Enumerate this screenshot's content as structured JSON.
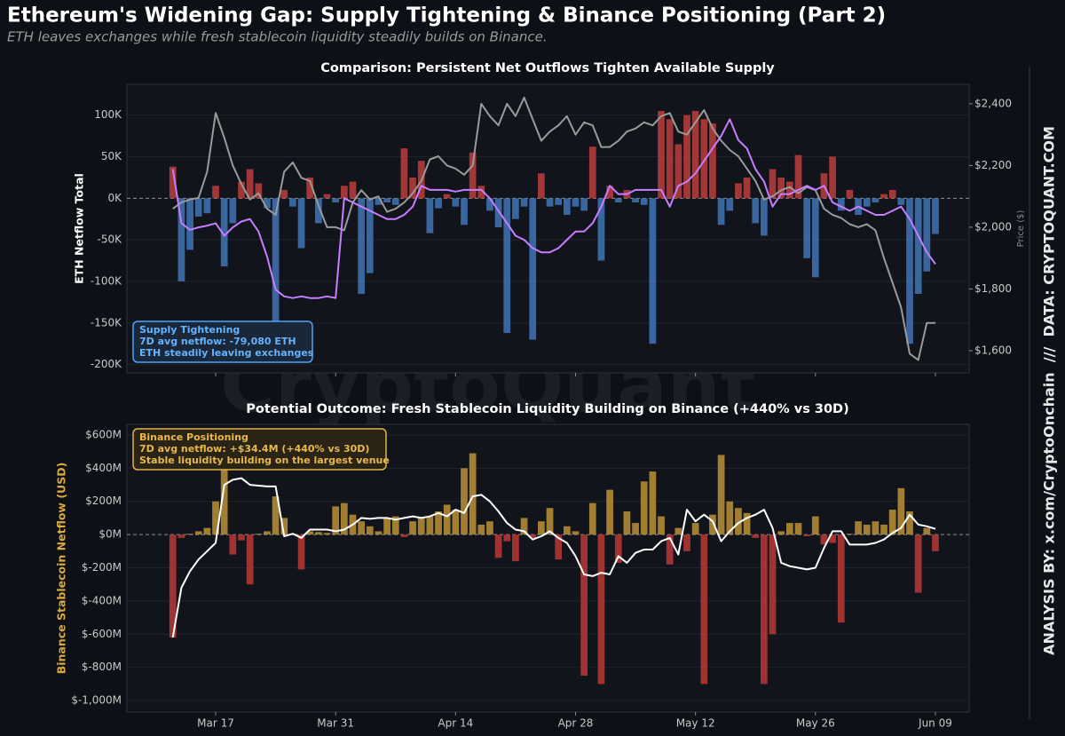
{
  "header": {
    "title": "Ethereum's Widening Gap: Supply Tightening & Binance Positioning (Part 2)",
    "subtitle": "ETH leaves exchanges while fresh stablecoin liquidity steadily builds on Binance."
  },
  "credits": "ANALYSIS BY: x.com/CryptoOnchain  ///  DATA: CRYPTOQUANT.COM",
  "watermark": "CryptoQuant",
  "chart_data": [
    {
      "type": "bar",
      "title": "Comparison: Persistent Net Outflows Tighten Available Supply",
      "ylabel": "ETH Netflow Total",
      "y2label": "Price ($)",
      "ylim": [
        -210000,
        137000
      ],
      "yticks": [
        {
          "value": -200000,
          "label": "-200K"
        },
        {
          "value": -150000,
          "label": "-150K"
        },
        {
          "value": -100000,
          "label": "-100K"
        },
        {
          "value": -50000,
          "label": "-50K"
        },
        {
          "value": 0,
          "label": "0K"
        },
        {
          "value": 50000,
          "label": "50K"
        },
        {
          "value": 100000,
          "label": "100K"
        }
      ],
      "y2lim": [
        1528,
        2463
      ],
      "y2ticks": [
        {
          "value": 1600,
          "label": "$1,600"
        },
        {
          "value": 1800,
          "label": "$1,800"
        },
        {
          "value": 2000,
          "label": "$2,000"
        },
        {
          "value": 2200,
          "label": "$2,200"
        },
        {
          "value": 2400,
          "label": "$2,400"
        }
      ],
      "grid": true,
      "series": [
        {
          "type": "bar",
          "color": "#b23b3b",
          "negative_color": "#3f6fae",
          "values": [
            38000,
            -100000,
            -62000,
            -22000,
            -18000,
            15000,
            -82000,
            -30000,
            20000,
            35000,
            18000,
            -12000,
            -150000,
            10000,
            -10000,
            -60000,
            25000,
            -30000,
            5000,
            -5000,
            15000,
            20000,
            -115000,
            -90000,
            -8000,
            -5000,
            -8000,
            60000,
            25000,
            45000,
            -42000,
            -12000,
            5000,
            -10000,
            -32000,
            55000,
            15000,
            -15000,
            -35000,
            -162000,
            -25000,
            -10000,
            -170000,
            30000,
            -10000,
            -8000,
            -20000,
            -10000,
            -15000,
            62000,
            -75000,
            15000,
            -5000,
            10000,
            -5000,
            -8000,
            -175000,
            105000,
            95000,
            65000,
            100000,
            105000,
            95000,
            90000,
            -32000,
            -15000,
            18000,
            25000,
            -30000,
            -45000,
            35000,
            25000,
            20000,
            52000,
            -72000,
            -95000,
            30000,
            50000,
            -15000,
            10000,
            -20000,
            -10000,
            -5000,
            5000,
            10000,
            -8000,
            -175000,
            -115000,
            -88000,
            -43000
          ]
        },
        {
          "type": "line",
          "color": "#9a9a9a",
          "axis": "y2",
          "values": [
            2060,
            2080,
            2090,
            2095,
            2180,
            2370,
            2290,
            2200,
            2140,
            2090,
            2110,
            2060,
            2040,
            2180,
            2210,
            2160,
            2150,
            2070,
            2000,
            2000,
            1990,
            2080,
            2120,
            2090,
            2100,
            2050,
            2060,
            2080,
            2110,
            2150,
            2220,
            2230,
            2200,
            2190,
            2170,
            2200,
            2400,
            2360,
            2330,
            2400,
            2360,
            2420,
            2350,
            2280,
            2310,
            2330,
            2360,
            2300,
            2340,
            2330,
            2260,
            2260,
            2280,
            2310,
            2320,
            2340,
            2330,
            2360,
            2370,
            2310,
            2300,
            2340,
            2380,
            2320,
            2280,
            2250,
            2230,
            2190,
            2150,
            2090,
            2100,
            2120,
            2130,
            2110,
            2130,
            2120,
            2060,
            2040,
            2030,
            2010,
            2000,
            2010,
            1990,
            1900,
            1820,
            1740,
            1590,
            1570,
            1690,
            1690
          ]
        },
        {
          "type": "line",
          "color": "#c77dff",
          "values": [
            35000,
            -30000,
            -38000,
            -35000,
            -33000,
            -30000,
            -45000,
            -35000,
            -28000,
            -25000,
            -40000,
            -70000,
            -110000,
            -118000,
            -120000,
            -118000,
            -120000,
            -120000,
            -118000,
            -120000,
            0,
            -5000,
            -10000,
            -15000,
            -20000,
            -25000,
            -25000,
            -20000,
            -10000,
            15000,
            10000,
            10000,
            10000,
            8000,
            10000,
            10000,
            10000,
            0,
            -15000,
            -30000,
            -45000,
            -50000,
            -60000,
            -65000,
            -65000,
            -60000,
            -50000,
            -40000,
            -40000,
            -30000,
            -10000,
            15000,
            5000,
            5000,
            10000,
            10000,
            10000,
            10000,
            -10000,
            15000,
            20000,
            30000,
            45000,
            60000,
            75000,
            95000,
            70000,
            60000,
            35000,
            20000,
            -10000,
            5000,
            5000,
            10000,
            15000,
            10000,
            15000,
            -5000,
            -10000,
            -15000,
            -10000,
            -15000,
            -20000,
            -20000,
            -15000,
            -10000,
            -25000,
            -45000,
            -65000,
            -79080
          ]
        }
      ],
      "annotation": [
        "Supply Tightening",
        "7D avg netflow: -79,080 ETH",
        "ETH steadily leaving exchanges"
      ]
    },
    {
      "type": "bar",
      "title": "Potential Outcome: Fresh Stablecoin Liquidity Building on Binance (+440% vs 30D)",
      "ylabel": "Binance Stablecoin Netflow (USD)",
      "x": [
        "Mar 12",
        "Mar 13",
        "Mar 14",
        "Mar 15",
        "Mar 16",
        "Mar 17",
        "Mar 18",
        "Mar 19",
        "Mar 20",
        "Mar 21",
        "Mar 22",
        "Mar 23",
        "Mar 24",
        "Mar 25",
        "Mar 26",
        "Mar 27",
        "Mar 28",
        "Mar 29",
        "Mar 30",
        "Mar 31",
        "Apr 01",
        "Apr 02",
        "Apr 03",
        "Apr 04",
        "Apr 05",
        "Apr 06",
        "Apr 07",
        "Apr 08",
        "Apr 09",
        "Apr 10",
        "Apr 11",
        "Apr 12",
        "Apr 13",
        "Apr 14",
        "Apr 15",
        "Apr 16",
        "Apr 17",
        "Apr 18",
        "Apr 19",
        "Apr 20",
        "Apr 21",
        "Apr 22",
        "Apr 23",
        "Apr 24",
        "Apr 25",
        "Apr 26",
        "Apr 27",
        "Apr 28",
        "Apr 29",
        "Apr 30",
        "May 01",
        "May 02",
        "May 03",
        "May 04",
        "May 05",
        "May 06",
        "May 07",
        "May 08",
        "May 09",
        "May 10",
        "May 11",
        "May 12",
        "May 13",
        "May 14",
        "May 15",
        "May 16",
        "May 17",
        "May 18",
        "May 19",
        "May 20",
        "May 21",
        "May 22",
        "May 23",
        "May 24",
        "May 25",
        "May 26",
        "May 27",
        "May 28",
        "May 29",
        "May 30",
        "May 31",
        "Jun 01",
        "Jun 02",
        "Jun 03",
        "Jun 04",
        "Jun 05",
        "Jun 06",
        "Jun 07",
        "Jun 08",
        "Jun 09"
      ],
      "xticks": [
        "Mar 17",
        "Mar 31",
        "Apr 14",
        "Apr 28",
        "May 12",
        "May 26",
        "Jun 09"
      ],
      "ylim": [
        -1069,
        664
      ],
      "yticks": [
        {
          "value": -1000,
          "label": "$-1,000M"
        },
        {
          "value": -800,
          "label": "$-800M"
        },
        {
          "value": -600,
          "label": "$-600M"
        },
        {
          "value": -400,
          "label": "$-400M"
        },
        {
          "value": -200,
          "label": "$-200M"
        },
        {
          "value": 0,
          "label": "$0M"
        },
        {
          "value": 200,
          "label": "$200M"
        },
        {
          "value": 400,
          "label": "$400M"
        },
        {
          "value": 600,
          "label": "$600M"
        }
      ],
      "grid": true,
      "series": [
        {
          "type": "bar",
          "color": "#b38a36",
          "negative_color": "#b03535",
          "values": [
            -620,
            -20,
            5,
            20,
            40,
            200,
            400,
            -120,
            -35,
            -300,
            5,
            20,
            230,
            100,
            5,
            -210,
            20,
            15,
            10,
            170,
            190,
            120,
            80,
            50,
            20,
            100,
            110,
            -15,
            80,
            100,
            110,
            140,
            180,
            150,
            400,
            490,
            60,
            80,
            -140,
            -40,
            -160,
            100,
            -20,
            80,
            160,
            -150,
            50,
            20,
            -850,
            190,
            -900,
            270,
            -170,
            140,
            70,
            320,
            380,
            110,
            -180,
            40,
            -100,
            70,
            -900,
            120,
            480,
            200,
            160,
            130,
            -20,
            -900,
            -600,
            20,
            70,
            70,
            -10,
            110,
            -60,
            -50,
            -530,
            5,
            80,
            60,
            80,
            60,
            150,
            280,
            140,
            -350,
            40,
            -100
          ]
        },
        {
          "type": "line",
          "color": "#ffffff",
          "values": [
            -620,
            -320,
            -220,
            -150,
            -100,
            -50,
            300,
            330,
            340,
            300,
            295,
            290,
            290,
            -10,
            5,
            -20,
            30,
            30,
            30,
            20,
            30,
            60,
            100,
            95,
            100,
            100,
            90,
            100,
            110,
            100,
            110,
            130,
            110,
            150,
            130,
            230,
            240,
            200,
            140,
            70,
            30,
            20,
            -30,
            -10,
            20,
            -20,
            -50,
            -130,
            -240,
            -250,
            -230,
            -240,
            -130,
            -170,
            -110,
            -90,
            -90,
            -40,
            -20,
            -120,
            150,
            80,
            120,
            80,
            -40,
            20,
            70,
            100,
            120,
            150,
            40,
            -170,
            -190,
            -200,
            -210,
            -200,
            -80,
            20,
            20,
            -60,
            -60,
            -60,
            -50,
            -30,
            10,
            40,
            120,
            60,
            50,
            34.4
          ]
        }
      ],
      "annotation": [
        "Binance Positioning",
        "7D avg netflow: +$34.4M (+440% vs 30D)",
        "Stable liquidity building on the largest venue"
      ]
    }
  ]
}
